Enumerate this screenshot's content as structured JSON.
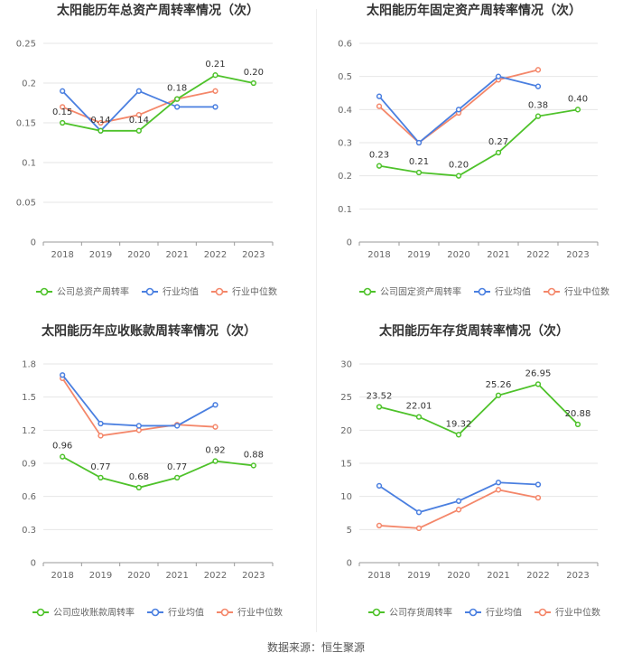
{
  "colors": {
    "company": "#4ec22a",
    "avg": "#4a7fe0",
    "median": "#f4876a",
    "grid": "#e6e6e6",
    "axis": "#999999"
  },
  "source": "数据来源：恒生聚源",
  "chart_data": [
    {
      "type": "line",
      "title": "太阳能历年总资产周转率情况（次）",
      "categories": [
        "2018",
        "2019",
        "2020",
        "2021",
        "2022",
        "2023"
      ],
      "yticks": [
        "0",
        "0.05",
        "0.1",
        "0.15",
        "0.2",
        "0.25"
      ],
      "ylim": [
        0,
        0.25
      ],
      "series": [
        {
          "name": "公司总资产周转率",
          "role": "company",
          "values": [
            0.15,
            0.14,
            0.14,
            0.18,
            0.21,
            0.2
          ],
          "labels": [
            "0.15",
            "0.14",
            "0.14",
            "0.18",
            "0.21",
            "0.20"
          ]
        },
        {
          "name": "行业均值",
          "role": "avg",
          "values": [
            0.19,
            0.14,
            0.19,
            0.17,
            0.17,
            null
          ]
        },
        {
          "name": "行业中位数",
          "role": "median",
          "values": [
            0.17,
            0.15,
            0.16,
            0.18,
            0.19,
            null
          ]
        }
      ]
    },
    {
      "type": "line",
      "title": "太阳能历年固定资产周转率情况（次）",
      "categories": [
        "2018",
        "2019",
        "2020",
        "2021",
        "2022",
        "2023"
      ],
      "yticks": [
        "0",
        "0.1",
        "0.2",
        "0.3",
        "0.4",
        "0.5",
        "0.6"
      ],
      "ylim": [
        0,
        0.6
      ],
      "series": [
        {
          "name": "公司固定资产周转率",
          "role": "company",
          "values": [
            0.23,
            0.21,
            0.2,
            0.27,
            0.38,
            0.4
          ],
          "labels": [
            "0.23",
            "0.21",
            "0.20",
            "0.27",
            "0.38",
            "0.40"
          ]
        },
        {
          "name": "行业均值",
          "role": "avg",
          "values": [
            0.44,
            0.3,
            0.4,
            0.5,
            0.47,
            null
          ]
        },
        {
          "name": "行业中位数",
          "role": "median",
          "values": [
            0.41,
            0.3,
            0.39,
            0.49,
            0.52,
            null
          ]
        }
      ]
    },
    {
      "type": "line",
      "title": "太阳能历年应收账款周转率情况（次）",
      "categories": [
        "2018",
        "2019",
        "2020",
        "2021",
        "2022",
        "2023"
      ],
      "yticks": [
        "0",
        "0.3",
        "0.6",
        "0.9",
        "1.2",
        "1.5",
        "1.8"
      ],
      "ylim": [
        0,
        1.8
      ],
      "series": [
        {
          "name": "公司应收账款周转率",
          "role": "company",
          "values": [
            0.96,
            0.77,
            0.68,
            0.77,
            0.92,
            0.88
          ],
          "labels": [
            "0.96",
            "0.77",
            "0.68",
            "0.77",
            "0.92",
            "0.88"
          ]
        },
        {
          "name": "行业均值",
          "role": "avg",
          "values": [
            1.7,
            1.26,
            1.24,
            1.24,
            1.43,
            null
          ]
        },
        {
          "name": "行业中位数",
          "role": "median",
          "values": [
            1.67,
            1.15,
            1.2,
            1.25,
            1.23,
            null
          ]
        }
      ]
    },
    {
      "type": "line",
      "title": "太阳能历年存货周转率情况（次）",
      "categories": [
        "2018",
        "2019",
        "2020",
        "2021",
        "2022",
        "2023"
      ],
      "yticks": [
        "0",
        "5",
        "10",
        "15",
        "20",
        "25",
        "30"
      ],
      "ylim": [
        0,
        30
      ],
      "series": [
        {
          "name": "公司存货周转率",
          "role": "company",
          "values": [
            23.52,
            22.01,
            19.32,
            25.26,
            26.95,
            20.88
          ],
          "labels": [
            "23.52",
            "22.01",
            "19.32",
            "25.26",
            "26.95",
            "20.88"
          ]
        },
        {
          "name": "行业均值",
          "role": "avg",
          "values": [
            11.6,
            7.6,
            9.3,
            12.1,
            11.8,
            null
          ]
        },
        {
          "name": "行业中位数",
          "role": "median",
          "values": [
            5.6,
            5.2,
            8.0,
            11.0,
            9.8,
            null
          ]
        }
      ]
    }
  ]
}
